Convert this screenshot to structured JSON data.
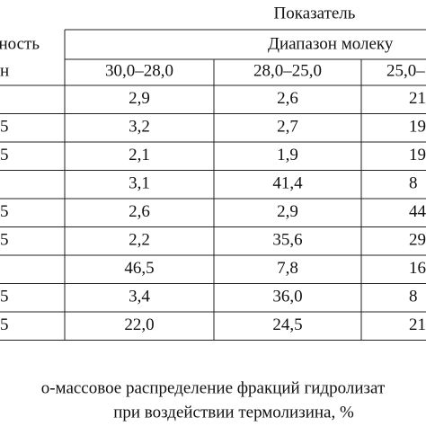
{
  "table": {
    "header": {
      "indicator": "Показатель",
      "left": [
        "ность",
        "н"
      ],
      "range": "Диапазон молеку",
      "columns": [
        "30,0–28,0",
        "28,0–25,0",
        "25,0–"
      ]
    },
    "rows": [
      {
        "cells": [
          "2,9",
          "2,6",
          "21"
        ]
      },
      {
        "label": "5",
        "cells": [
          "3,2",
          "2,7",
          "19"
        ]
      },
      {
        "label": "5",
        "cells": [
          "2,1",
          "1,9",
          "19"
        ]
      },
      {
        "cells": [
          "3,1",
          "41,4",
          "8"
        ]
      },
      {
        "label": "5",
        "cells": [
          "2,6",
          "2,9",
          "44"
        ]
      },
      {
        "label": "5",
        "cells": [
          "2,2",
          "35,6",
          "29"
        ]
      },
      {
        "cells": [
          "46,5",
          "7,8",
          "16"
        ]
      },
      {
        "label": "5",
        "cells": [
          "3,4",
          "36,0",
          "8"
        ]
      },
      {
        "label": "5",
        "cells": [
          "22,0",
          "24,5",
          "21"
        ]
      }
    ]
  },
  "caption": [
    "о-массовое распределение фракций гидролизат",
    "при воздействии термолизина, %"
  ]
}
